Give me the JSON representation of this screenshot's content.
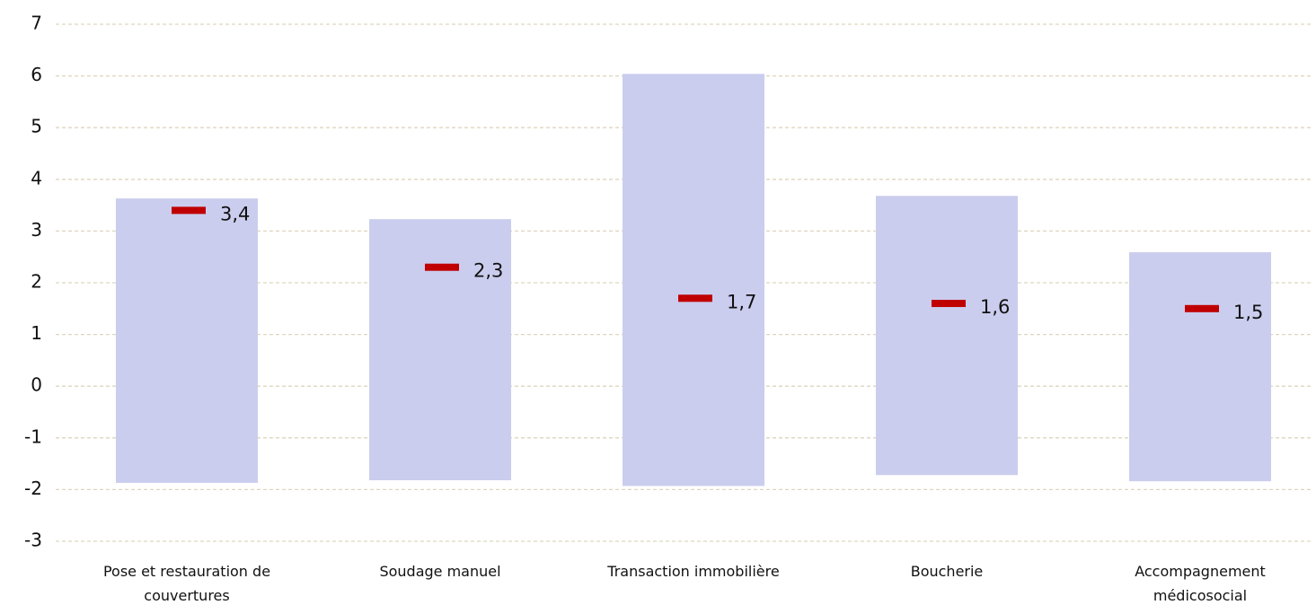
{
  "chart_data": {
    "type": "range-bar",
    "categories": [
      "Pose et restauration de couvertures",
      "Soudage manuel",
      "Transaction immobilière",
      "Boucherie",
      "Accompagnement médicosocial"
    ],
    "lows": [
      -1.87,
      -1.82,
      -1.93,
      -1.72,
      -1.84
    ],
    "highs": [
      3.63,
      3.23,
      6.04,
      3.68,
      2.59
    ],
    "values": [
      3.4,
      2.3,
      1.7,
      1.6,
      1.5
    ],
    "value_labels": [
      "3,4",
      "2,3",
      "1,7",
      "1,6",
      "1,5"
    ],
    "bar_color": "#cbcdee",
    "marker_color": "#c00000",
    "ylim": [
      -3,
      7
    ],
    "yticks": [
      -3,
      -2,
      -1,
      0,
      1,
      2,
      3,
      4,
      5,
      6,
      7
    ],
    "grid": true
  }
}
